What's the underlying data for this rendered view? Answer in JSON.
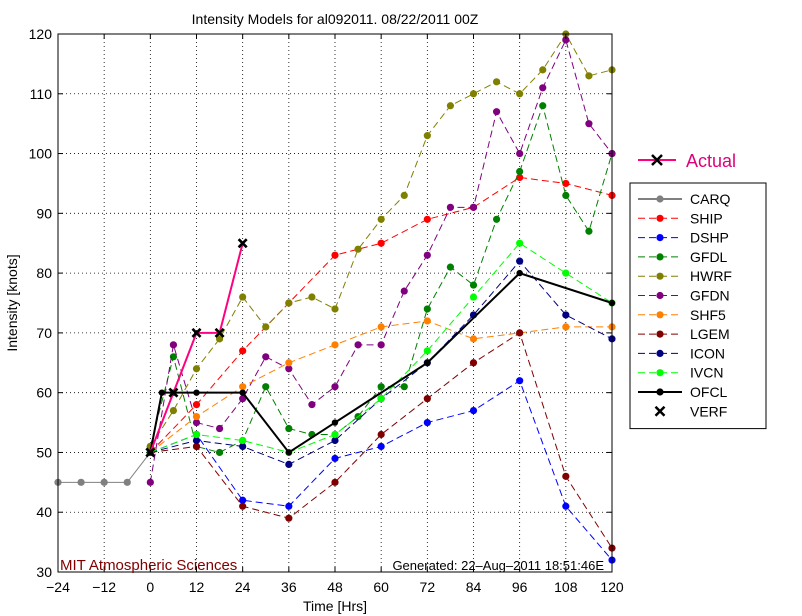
{
  "chart_data": {
    "type": "line",
    "title": "Intensity Models for al092011. 08/22/2011 00Z",
    "xlabel": "Time [Hrs]",
    "ylabel": "Intensity [knots]",
    "xlim": [
      -24,
      120
    ],
    "ylim": [
      30,
      120
    ],
    "xticks": [
      -24,
      -12,
      0,
      12,
      24,
      36,
      48,
      60,
      72,
      84,
      96,
      108,
      120
    ],
    "yticks": [
      30,
      40,
      50,
      60,
      70,
      80,
      90,
      100,
      110,
      120
    ],
    "xtick_labels": [
      "−24",
      "−12",
      "0",
      "12",
      "24",
      "36",
      "48",
      "60",
      "72",
      "84",
      "96",
      "108",
      "120"
    ],
    "ytick_labels": [
      "30",
      "40",
      "50",
      "60",
      "70",
      "80",
      "90",
      "100",
      "110",
      "120"
    ],
    "grid": true,
    "legend_position": "right",
    "actual_legend_label": "Actual",
    "watermark": "MIT Atmospheric Sciences",
    "generated": "Generated: 22–Aug–2011 18:51:46E",
    "series": [
      {
        "name": "CARQ",
        "color": "#808080",
        "style": "solid",
        "marker": "dot",
        "points": [
          [
            -24,
            45
          ],
          [
            -18,
            45
          ],
          [
            -12,
            45
          ],
          [
            -6,
            45
          ],
          [
            0,
            50
          ]
        ]
      },
      {
        "name": "SHIP",
        "color": "#ff0000",
        "style": "dashed",
        "marker": "dot",
        "points": [
          [
            0,
            50
          ],
          [
            12,
            58
          ],
          [
            24,
            67
          ],
          [
            36,
            75
          ],
          [
            48,
            83
          ],
          [
            60,
            85
          ],
          [
            72,
            89
          ],
          [
            84,
            91
          ],
          [
            96,
            96
          ],
          [
            108,
            95
          ],
          [
            120,
            93
          ]
        ]
      },
      {
        "name": "DSHP",
        "color": "#0000ff",
        "style": "dashed",
        "marker": "dot",
        "points": [
          [
            0,
            50
          ],
          [
            12,
            53
          ],
          [
            24,
            42
          ],
          [
            36,
            41
          ],
          [
            48,
            49
          ],
          [
            60,
            51
          ],
          [
            72,
            55
          ],
          [
            84,
            57
          ],
          [
            96,
            62
          ],
          [
            108,
            41
          ],
          [
            120,
            32
          ]
        ]
      },
      {
        "name": "GFDL",
        "color": "#008000",
        "style": "dashed",
        "marker": "dot",
        "points": [
          [
            0,
            51
          ],
          [
            6,
            66
          ],
          [
            12,
            51
          ],
          [
            18,
            50
          ],
          [
            24,
            52
          ],
          [
            30,
            61
          ],
          [
            36,
            54
          ],
          [
            42,
            53
          ],
          [
            48,
            53
          ],
          [
            54,
            56
          ],
          [
            60,
            61
          ],
          [
            66,
            61
          ],
          [
            72,
            74
          ],
          [
            78,
            81
          ],
          [
            84,
            78
          ],
          [
            90,
            89
          ],
          [
            96,
            97
          ],
          [
            102,
            108
          ],
          [
            108,
            93
          ],
          [
            114,
            87
          ],
          [
            120,
            100
          ]
        ]
      },
      {
        "name": "HWRF",
        "color": "#808000",
        "style": "dashed",
        "marker": "dot",
        "points": [
          [
            0,
            51
          ],
          [
            6,
            57
          ],
          [
            12,
            64
          ],
          [
            18,
            69
          ],
          [
            24,
            76
          ],
          [
            30,
            71
          ],
          [
            36,
            75
          ],
          [
            42,
            76
          ],
          [
            48,
            74
          ],
          [
            54,
            84
          ],
          [
            60,
            89
          ],
          [
            66,
            93
          ],
          [
            72,
            103
          ],
          [
            78,
            108
          ],
          [
            84,
            110
          ],
          [
            90,
            112
          ],
          [
            96,
            110
          ],
          [
            102,
            114
          ],
          [
            108,
            120
          ],
          [
            114,
            113
          ],
          [
            120,
            114
          ]
        ]
      },
      {
        "name": "GFDN",
        "color": "#800080",
        "style": "dashed",
        "marker": "dot",
        "points": [
          [
            0,
            45
          ],
          [
            6,
            68
          ],
          [
            12,
            55
          ],
          [
            18,
            54
          ],
          [
            24,
            59
          ],
          [
            30,
            66
          ],
          [
            36,
            64
          ],
          [
            42,
            58
          ],
          [
            48,
            61
          ],
          [
            54,
            68
          ],
          [
            60,
            68
          ],
          [
            66,
            77
          ],
          [
            72,
            83
          ],
          [
            78,
            91
          ],
          [
            84,
            91
          ],
          [
            90,
            107
          ],
          [
            96,
            100
          ],
          [
            102,
            111
          ],
          [
            108,
            119
          ],
          [
            114,
            105
          ],
          [
            120,
            100
          ]
        ]
      },
      {
        "name": "SHF5",
        "color": "#ff8000",
        "style": "dashed",
        "marker": "dot",
        "points": [
          [
            0,
            50
          ],
          [
            12,
            56
          ],
          [
            24,
            61
          ],
          [
            36,
            65
          ],
          [
            48,
            68
          ],
          [
            60,
            71
          ],
          [
            72,
            72
          ],
          [
            84,
            69
          ],
          [
            96,
            70
          ],
          [
            108,
            71
          ],
          [
            120,
            71
          ]
        ]
      },
      {
        "name": "LGEM",
        "color": "#800000",
        "style": "dashed",
        "marker": "dot",
        "points": [
          [
            0,
            50
          ],
          [
            12,
            51
          ],
          [
            24,
            41
          ],
          [
            36,
            39
          ],
          [
            48,
            45
          ],
          [
            60,
            53
          ],
          [
            72,
            59
          ],
          [
            84,
            65
          ],
          [
            96,
            70
          ],
          [
            108,
            46
          ],
          [
            120,
            34
          ]
        ]
      },
      {
        "name": "ICON",
        "color": "#000080",
        "style": "dashed",
        "marker": "dot",
        "points": [
          [
            0,
            50
          ],
          [
            12,
            52
          ],
          [
            24,
            51
          ],
          [
            36,
            48
          ],
          [
            48,
            52
          ],
          [
            60,
            59
          ],
          [
            72,
            65
          ],
          [
            84,
            73
          ],
          [
            96,
            82
          ],
          [
            108,
            73
          ],
          [
            120,
            69
          ]
        ]
      },
      {
        "name": "IVCN",
        "color": "#00ff00",
        "style": "dashed",
        "marker": "dot",
        "points": [
          [
            0,
            50
          ],
          [
            12,
            53
          ],
          [
            24,
            52
          ],
          [
            36,
            50
          ],
          [
            48,
            53
          ],
          [
            60,
            59
          ],
          [
            72,
            67
          ],
          [
            84,
            76
          ],
          [
            96,
            85
          ],
          [
            108,
            80
          ],
          [
            120,
            75
          ]
        ]
      },
      {
        "name": "OFCL",
        "color": "#000000",
        "style": "solid",
        "marker": "dot",
        "points": [
          [
            0,
            50
          ],
          [
            3,
            60
          ],
          [
            6,
            60
          ],
          [
            12,
            60
          ],
          [
            24,
            60
          ],
          [
            36,
            50
          ],
          [
            48,
            55
          ],
          [
            72,
            65
          ],
          [
            96,
            80
          ],
          [
            120,
            75
          ]
        ]
      },
      {
        "name": "VERF",
        "color": "#000000",
        "style": "none",
        "marker": "x",
        "points": [
          [
            0,
            50
          ],
          [
            6,
            60
          ],
          [
            12,
            70
          ],
          [
            18,
            70
          ],
          [
            24,
            85
          ]
        ]
      },
      {
        "name": "Actual",
        "color": "#ff0080",
        "style": "solid",
        "marker": "x",
        "in_main_legend": false,
        "points": [
          [
            0,
            50
          ],
          [
            6,
            60
          ],
          [
            12,
            70
          ],
          [
            18,
            70
          ],
          [
            24,
            85
          ]
        ]
      }
    ]
  }
}
